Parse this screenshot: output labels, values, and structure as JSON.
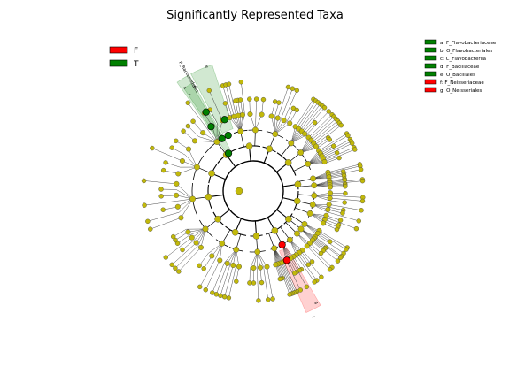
{
  "chart_data": {
    "type": "cladogram",
    "title": "Significantly Represented Taxa",
    "class_legend": [
      {
        "label": "F",
        "color": "#ff0000"
      },
      {
        "label": "T",
        "color": "#008000"
      }
    ],
    "taxa_legend": [
      {
        "label": "a: F_Flavobacteriaceae",
        "color": "#008000"
      },
      {
        "label": "b: O_Flavobacteriales",
        "color": "#008000"
      },
      {
        "label": "c: C_Flavobacteriia",
        "color": "#008000"
      },
      {
        "label": "d: F_Bacillaceae",
        "color": "#008000"
      },
      {
        "label": "e: O_Bacillales",
        "color": "#008000"
      },
      {
        "label": "f: F_Neisseriaceae",
        "color": "#ff0000"
      },
      {
        "label": "g: O_Neisseriales",
        "color": "#ff0000"
      }
    ],
    "highlight_labels": [
      {
        "text": "P_Bacteroidetes",
        "group": "T",
        "angle_deg": 238
      },
      {
        "text": "c",
        "group": "T",
        "angle_deg": 238
      },
      {
        "text": "b",
        "group": "T",
        "angle_deg": 238
      },
      {
        "text": "a",
        "group": "T",
        "angle_deg": 238
      },
      {
        "text": "e",
        "group": "T",
        "angle_deg": 247
      },
      {
        "text": "g",
        "group": "F",
        "angle_deg": 63
      },
      {
        "text": "f",
        "group": "F",
        "angle_deg": 63
      }
    ],
    "neutral_color": "#c2b90a",
    "significant_clades": [
      {
        "name": "P_Bacteroidetes",
        "group": "T",
        "angle_deg": 238
      },
      {
        "name": "C_Flavobacteriia",
        "group": "T",
        "angle_deg": 238
      },
      {
        "name": "O_Flavobacteriales",
        "group": "T",
        "angle_deg": 238
      },
      {
        "name": "F_Flavobacteriaceae",
        "group": "T",
        "angle_deg": 238
      },
      {
        "name": "O_Bacillales",
        "group": "T",
        "angle_deg": 247
      },
      {
        "name": "F_Bacillaceae",
        "group": "T",
        "angle_deg": 247
      },
      {
        "name": "O_Neisseriales",
        "group": "F",
        "angle_deg": 63
      },
      {
        "name": "F_Neisseriaceae",
        "group": "F",
        "angle_deg": 63
      }
    ]
  }
}
